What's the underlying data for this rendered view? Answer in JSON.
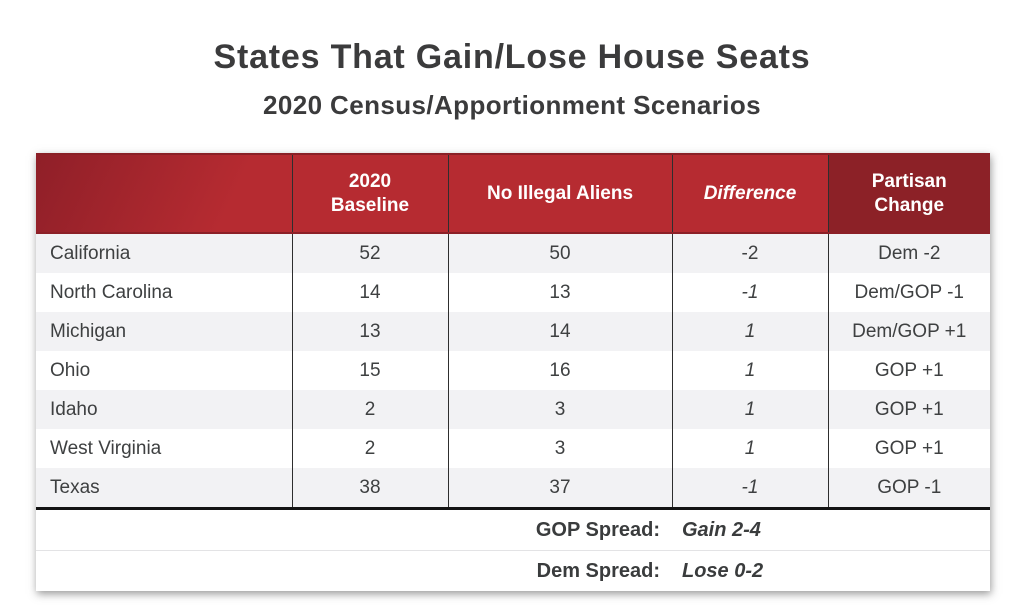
{
  "title": "States That Gain/Lose House Seats",
  "subtitle": "2020 Census/Apportionment Scenarios",
  "table": {
    "columns": {
      "state": "",
      "baseline": "2020\nBaseline",
      "no_illegal_aliens": "No Illegal Aliens",
      "difference": "Difference",
      "partisan_change": "Partisan\nChange"
    },
    "rows": [
      {
        "state": "California",
        "baseline": "52",
        "no_illegal_aliens": "50",
        "difference": "-2",
        "partisan_change": "Dem -2"
      },
      {
        "state": "North Carolina",
        "baseline": "14",
        "no_illegal_aliens": "13",
        "difference": "-1",
        "partisan_change": "Dem/GOP -1"
      },
      {
        "state": "Michigan",
        "baseline": "13",
        "no_illegal_aliens": "14",
        "difference": "1",
        "partisan_change": "Dem/GOP +1"
      },
      {
        "state": "Ohio",
        "baseline": "15",
        "no_illegal_aliens": "16",
        "difference": "1",
        "partisan_change": "GOP +1"
      },
      {
        "state": "Idaho",
        "baseline": "2",
        "no_illegal_aliens": "3",
        "difference": "1",
        "partisan_change": "GOP +1"
      },
      {
        "state": "West Virginia",
        "baseline": "2",
        "no_illegal_aliens": "3",
        "difference": "1",
        "partisan_change": "GOP +1"
      },
      {
        "state": "Texas",
        "baseline": "38",
        "no_illegal_aliens": "37",
        "difference": "-1",
        "partisan_change": "GOP -1"
      }
    ],
    "footer": [
      {
        "label": "GOP Spread:",
        "value": "Gain 2-4"
      },
      {
        "label": "Dem Spread:",
        "value": "Lose 0-2"
      }
    ]
  },
  "colors": {
    "header_red": "#b62b31",
    "header_dark_red": "#8c2127",
    "stripe_gray": "#f2f2f4",
    "text_dark": "#3e4041",
    "rule_black": "#141414"
  }
}
